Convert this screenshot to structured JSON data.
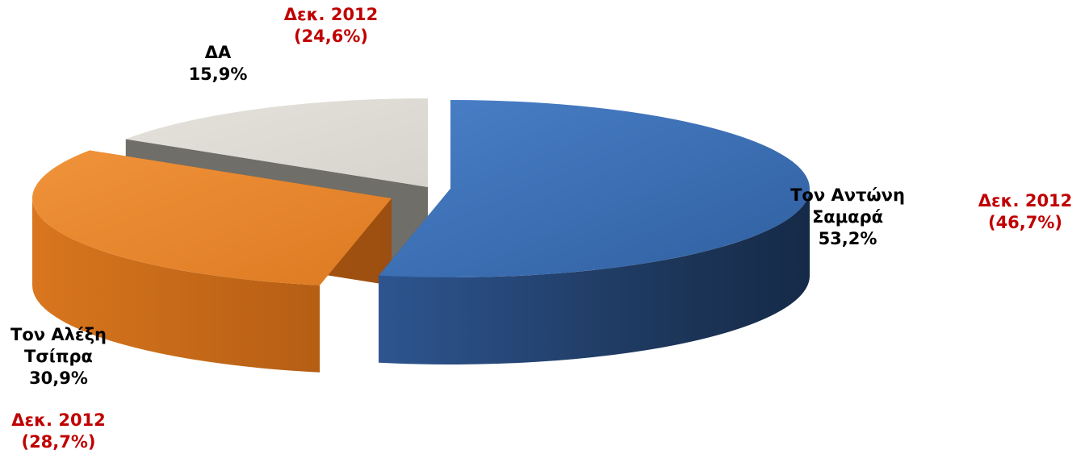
{
  "chart_data": {
    "type": "pie",
    "style": "3d-exploded",
    "slices": [
      {
        "name_lines": [
          "Τον Αντώνη",
          "Σαμαρά"
        ],
        "value": 53.2,
        "value_label": "53,2%",
        "compare_label": "Δεκ. 2012",
        "compare_value": 46.7,
        "compare_value_label": "(46,7%)",
        "color": "#3a6fb5"
      },
      {
        "name_lines": [
          "Τον Αλέξη",
          "Τσίπρα"
        ],
        "value": 30.9,
        "value_label": "30,9%",
        "compare_label": "Δεκ. 2012",
        "compare_value": 28.7,
        "compare_value_label": "(28,7%)",
        "color": "#e2822a"
      },
      {
        "name_lines": [
          "ΔΑ"
        ],
        "value": 15.9,
        "value_label": "15,9%",
        "compare_label": "Δεκ. 2012",
        "compare_value": 24.6,
        "compare_value_label": "(24,6%)",
        "color": "#dddbd3"
      }
    ],
    "colors": {
      "compare_text": "#c00000",
      "label_text": "#000000"
    }
  }
}
